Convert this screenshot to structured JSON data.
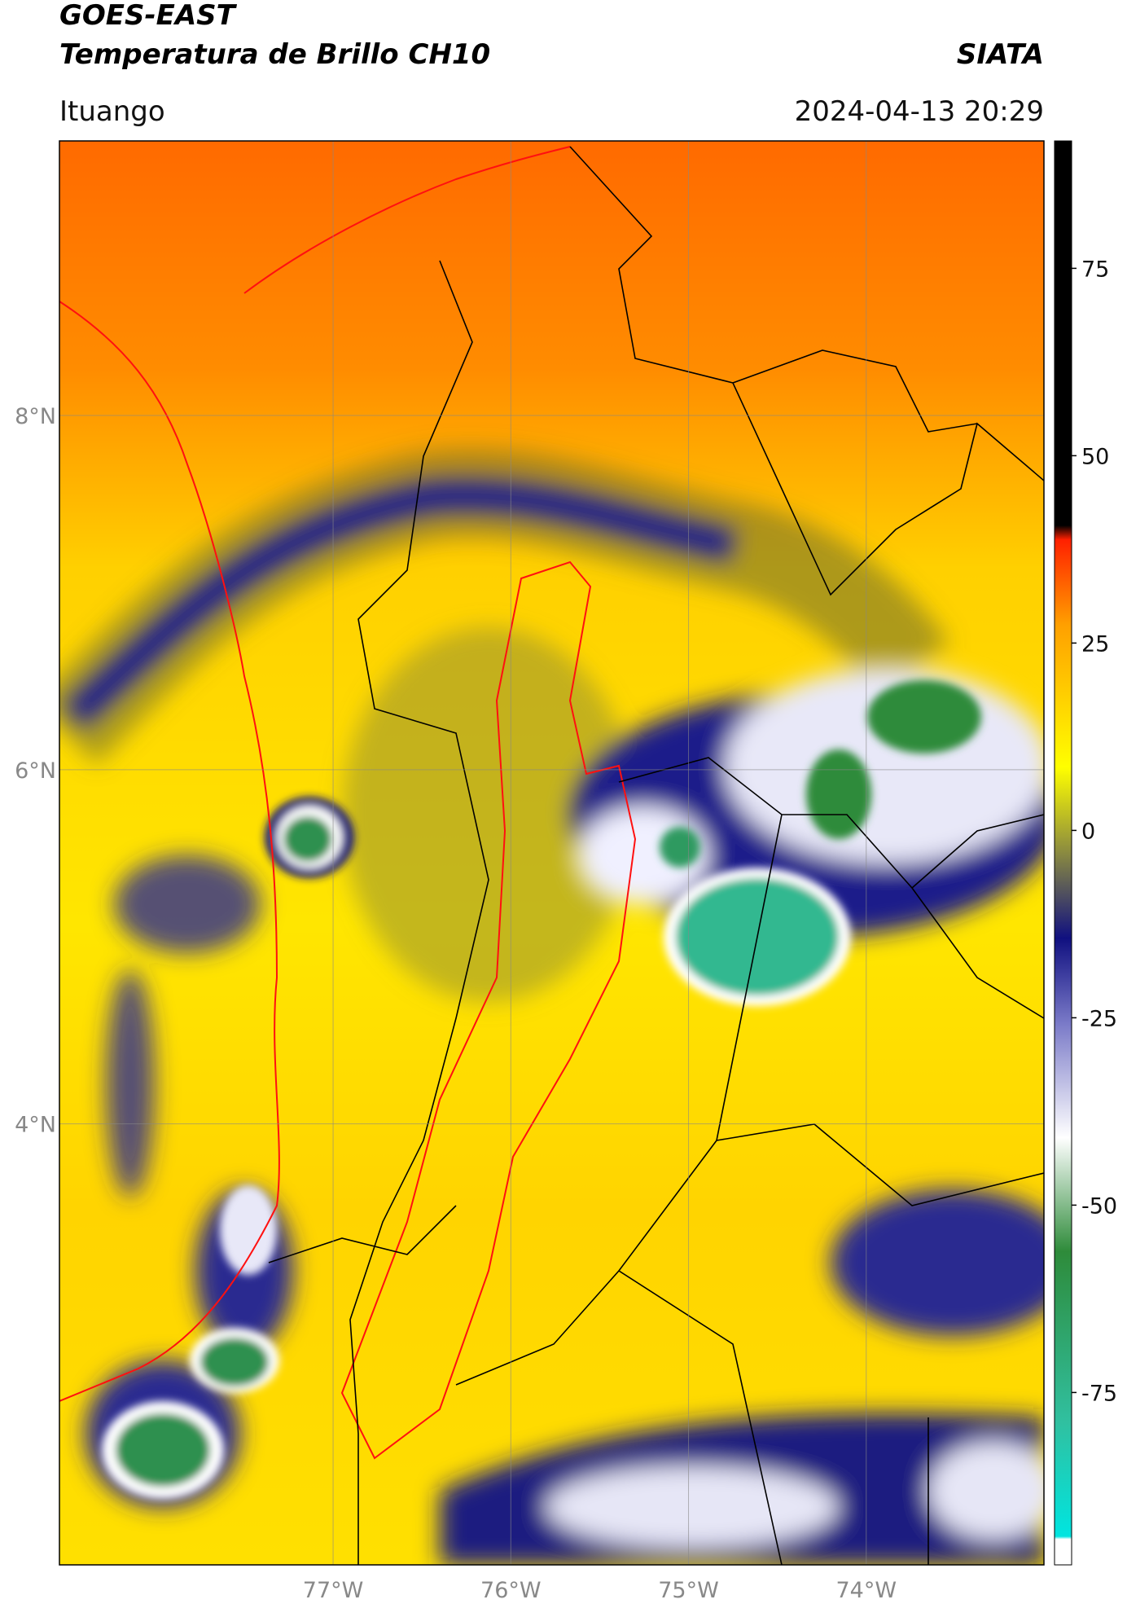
{
  "header": {
    "title": "GOES-EAST",
    "subtitle": "Temperatura de Brillo CH10",
    "source": "SIATA",
    "location": "Ituango",
    "datetime": "2024-04-13 20:29"
  },
  "map": {
    "xlim": [
      -78.54,
      -73.0
    ],
    "ylim": [
      1.51,
      9.55
    ],
    "xticks": [
      {
        "value": -77,
        "label": "77°W"
      },
      {
        "value": -76,
        "label": "76°W"
      },
      {
        "value": -75,
        "label": "75°W"
      },
      {
        "value": -74,
        "label": "74°W"
      }
    ],
    "yticks": [
      {
        "value": 8,
        "label": "8°N"
      },
      {
        "value": 6,
        "label": "6°N"
      },
      {
        "value": 4,
        "label": "4°N"
      }
    ],
    "grid": true
  },
  "colorbar": {
    "clim": [
      -98,
      92
    ],
    "ticks": [
      75,
      50,
      25,
      0,
      -25,
      -50,
      -75
    ]
  }
}
